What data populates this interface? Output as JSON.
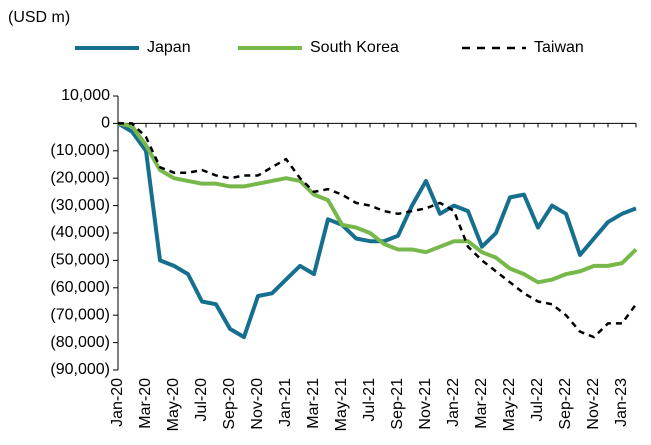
{
  "chart_data": {
    "type": "line",
    "unit_label": "(USD m)",
    "categories": [
      "Jan-20",
      null,
      "Mar-20",
      null,
      "May-20",
      null,
      "Jul-20",
      null,
      "Sep-20",
      null,
      "Nov-20",
      null,
      "Jan-21",
      null,
      "Mar-21",
      null,
      "May-21",
      null,
      "Jul-21",
      null,
      "Sep-21",
      null,
      "Nov-21",
      null,
      "Jan-22",
      null,
      "Mar-22",
      null,
      "May-22",
      null,
      "Jul-22",
      null,
      "Sep-22",
      null,
      "Nov-22",
      null,
      "Jan-23",
      null
    ],
    "series": [
      {
        "name": "Japan",
        "color": "#176f8f",
        "dash": false,
        "values": [
          0,
          -3000,
          -10000,
          -50000,
          -52000,
          -55000,
          -65000,
          -66000,
          -75000,
          -78000,
          -63000,
          -62000,
          -57000,
          -52000,
          -55000,
          -35000,
          -37000,
          -42000,
          -43000,
          -43000,
          -41000,
          -30000,
          -21000,
          -33000,
          -30000,
          -32000,
          -45000,
          -40000,
          -27000,
          -26000,
          -38000,
          -30000,
          -33000,
          -48000,
          -42000,
          -36000,
          -33000,
          -31000
        ]
      },
      {
        "name": "South Korea",
        "color": "#77b84a",
        "dash": false,
        "values": [
          0,
          -1000,
          -8000,
          -17000,
          -20000,
          -21000,
          -22000,
          -22000,
          -23000,
          -23000,
          -22000,
          -21000,
          -20000,
          -21000,
          -26000,
          -28000,
          -37000,
          -38000,
          -40000,
          -44000,
          -46000,
          -46000,
          -47000,
          -45000,
          -43000,
          -43000,
          -47000,
          -49000,
          -53000,
          -55000,
          -58000,
          -57000,
          -55000,
          -54000,
          -52000,
          -52000,
          -51000,
          -46000
        ]
      },
      {
        "name": "Taiwan",
        "color": "#000000",
        "dash": true,
        "values": [
          0,
          0,
          -5000,
          -16000,
          -18000,
          -18000,
          -17000,
          -19000,
          -20000,
          -19000,
          -19000,
          -16000,
          -13000,
          -20000,
          -25000,
          -24000,
          -26000,
          -29000,
          -30000,
          -32000,
          -33000,
          -32000,
          -31000,
          -29000,
          -32000,
          -45000,
          -50000,
          -54000,
          -58000,
          -62000,
          -65000,
          -66000,
          -70000,
          -76000,
          -78000,
          -73000,
          -73000,
          -66000
        ]
      }
    ],
    "ylim": [
      -90000,
      10000
    ],
    "yticks": [
      {
        "value": 10000,
        "label": "10,000"
      },
      0,
      {
        "value": -10000,
        "label": "(10,000)"
      },
      {
        "value": -20000,
        "label": "(20,000)"
      },
      {
        "value": -30000,
        "label": "(30,000)"
      },
      {
        "value": -40000,
        "label": "(40,000)"
      },
      {
        "value": -50000,
        "label": "(50,000)"
      },
      {
        "value": -60000,
        "label": "(60,000)"
      },
      {
        "value": -70000,
        "label": "(70,000)"
      },
      {
        "value": -80000,
        "label": "(80,000)"
      },
      {
        "value": -90000,
        "label": "(90,000)"
      }
    ],
    "legend": "top"
  }
}
